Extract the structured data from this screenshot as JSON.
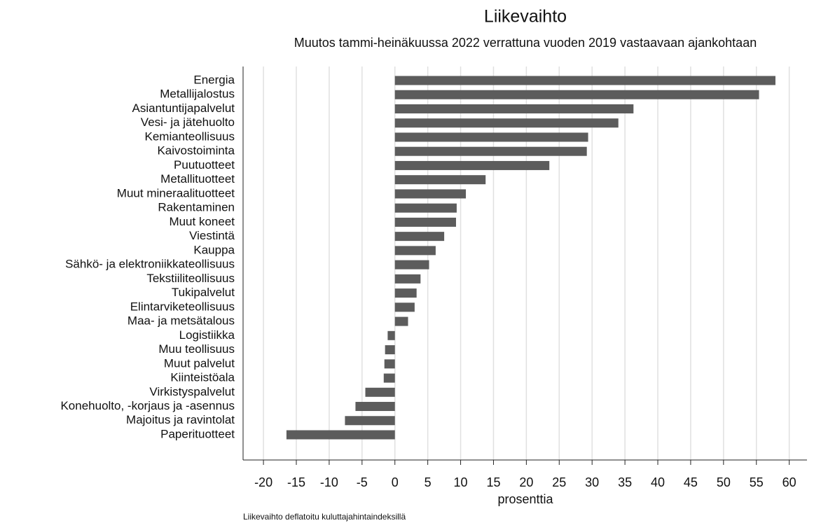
{
  "chart_data": {
    "type": "barh",
    "title": "Liikevaihto",
    "subtitle": "Muutos tammi-heinäkuussa 2022 verrattuna vuoden 2019 vastaavaan ajankohtaan",
    "x_label": "prosenttia",
    "note": "Liikevaihto deflatoitu kuluttajahintaindeksillä",
    "categories": [
      "Energia",
      "Metallijalostus",
      "Asiantuntijapalvelut",
      "Vesi- ja jätehuolto",
      "Kemianteollisuus",
      "Kaivostoiminta",
      "Puutuotteet",
      "Metallituotteet",
      "Muut mineraalituotteet",
      "Rakentaminen",
      "Muut koneet",
      "Viestintä",
      "Kauppa",
      "Sähkö- ja elektroniikkateollisuus",
      "Tekstiiliteollisuus",
      "Tukipalvelut",
      "Elintarviketeollisuus",
      "Maa- ja metsätalous",
      "Logistiikka",
      "Muu teollisuus",
      "Muut palvelut",
      "Kiinteistöala",
      "Virkistyspalvelut",
      "Konehuolto, -korjaus ja -asennus",
      "Majoitus ja ravintolat",
      "Paperituotteet"
    ],
    "values": [
      57.9,
      55.4,
      36.3,
      34.0,
      29.4,
      29.2,
      23.5,
      13.8,
      10.8,
      9.4,
      9.3,
      7.5,
      6.2,
      5.2,
      3.9,
      3.3,
      3.0,
      2.0,
      -1.1,
      -1.5,
      -1.6,
      -1.7,
      -4.5,
      -6.0,
      -7.6,
      -16.5
    ],
    "color": "#5c5c5c",
    "xlim": [
      -23.1,
      62.7
    ],
    "xticks": [
      -20,
      -15,
      -10,
      -5,
      0,
      5,
      10,
      15,
      20,
      25,
      30,
      35,
      40,
      45,
      50,
      55,
      60
    ],
    "grid": true
  }
}
